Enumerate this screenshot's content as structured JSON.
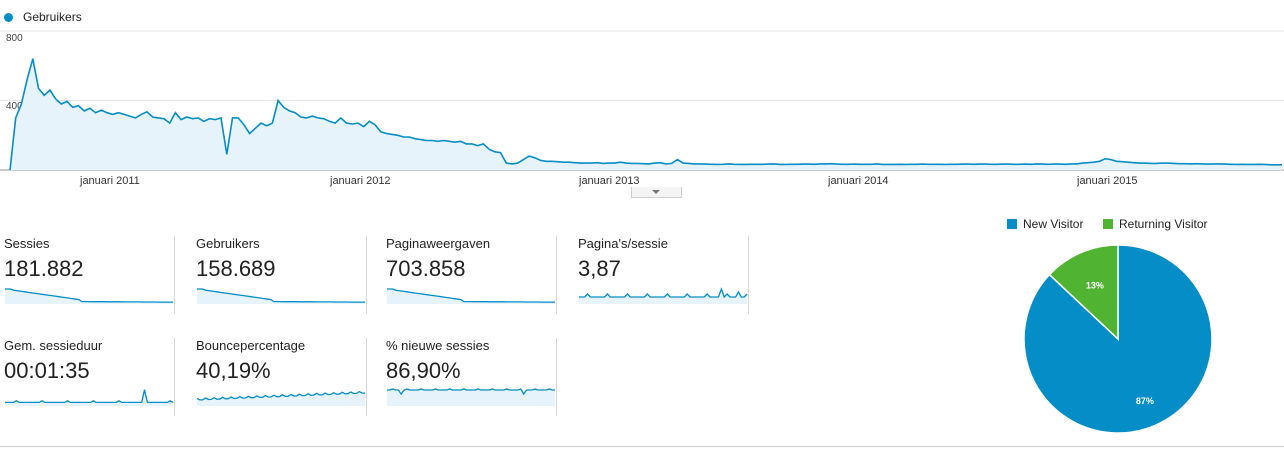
{
  "legend": {
    "series_name": "Gebruikers",
    "color": "#058dc7"
  },
  "chart_data": [
    {
      "type": "area",
      "series": [
        {
          "name": "Gebruikers",
          "color": "#058dc7"
        }
      ],
      "y_ticks": [
        "800",
        "400"
      ],
      "ylim": [
        0,
        800
      ],
      "x_ticks": [
        "januari 2011",
        "januari 2012",
        "januari 2013",
        "januari 2014",
        "januari 2015"
      ],
      "grid": true,
      "weekly_points_description_free": true,
      "values": [
        0,
        300,
        380,
        520,
        640,
        470,
        430,
        460,
        410,
        380,
        395,
        360,
        370,
        340,
        355,
        330,
        345,
        330,
        320,
        330,
        320,
        310,
        300,
        320,
        335,
        305,
        300,
        295,
        270,
        330,
        290,
        305,
        295,
        300,
        280,
        295,
        290,
        300,
        90,
        300,
        300,
        260,
        210,
        240,
        270,
        255,
        270,
        400,
        360,
        340,
        330,
        305,
        300,
        310,
        300,
        295,
        280,
        270,
        300,
        270,
        265,
        270,
        250,
        280,
        260,
        220,
        210,
        205,
        200,
        190,
        190,
        180,
        175,
        170,
        170,
        165,
        170,
        165,
        160,
        165,
        150,
        150,
        140,
        150,
        120,
        105,
        100,
        40,
        35,
        40,
        60,
        80,
        70,
        55,
        50,
        50,
        48,
        45,
        45,
        42,
        40,
        40,
        40,
        42,
        38,
        40,
        40,
        45,
        40,
        38,
        38,
        36,
        35,
        40,
        42,
        35,
        38,
        60,
        40,
        38,
        35,
        35,
        34,
        33,
        32,
        33,
        35,
        33,
        32,
        32,
        33,
        33,
        33,
        34,
        35,
        32,
        32,
        33,
        33,
        34,
        34,
        33,
        35,
        35,
        36,
        34,
        33,
        33,
        34,
        33,
        33,
        33,
        35,
        32,
        32,
        32,
        33,
        32,
        33,
        33,
        34,
        33,
        33,
        33,
        32,
        33,
        33,
        34,
        34,
        33,
        34,
        34,
        33,
        33,
        34,
        34,
        33,
        33,
        34,
        33,
        35,
        34,
        33,
        34,
        34,
        33,
        35,
        35,
        40,
        42,
        45,
        50,
        65,
        60,
        50,
        48,
        45,
        42,
        40,
        40,
        38,
        38,
        40,
        40,
        38,
        36,
        36,
        35,
        36,
        35,
        34,
        35,
        35,
        34,
        33,
        32,
        33,
        32,
        32,
        33,
        32,
        30,
        30,
        30
      ]
    },
    {
      "type": "pie",
      "series": [
        {
          "name": "New Visitor",
          "value": 87,
          "label": "87%",
          "color": "#058dc7"
        },
        {
          "name": "Returning Visitor",
          "value": 13,
          "label": "13%",
          "color": "#50b432"
        }
      ]
    }
  ],
  "metrics": [
    {
      "label": "Sessies",
      "value": "181.882"
    },
    {
      "label": "Gebruikers",
      "value": "158.689"
    },
    {
      "label": "Paginaweergaven",
      "value": "703.858"
    },
    {
      "label": "Pagina's/sessie",
      "value": "3,87"
    },
    {
      "label": "Gem. sessieduur",
      "value": "00:01:35"
    },
    {
      "label": "Bouncepercentage",
      "value": "40,19%"
    },
    {
      "label": "% nieuwe sessies",
      "value": "86,90%"
    }
  ],
  "pie_legend": {
    "new": "New Visitor",
    "returning": "Returning Visitor"
  }
}
